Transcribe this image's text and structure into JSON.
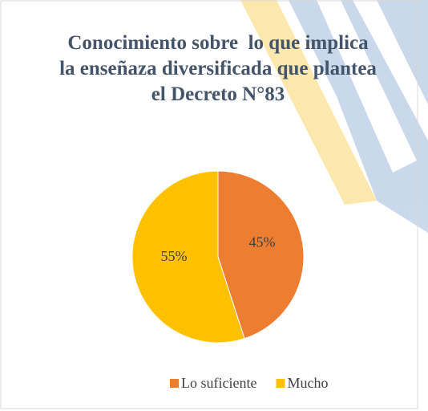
{
  "chart_data": {
    "type": "pie",
    "title": "Conocimiento sobre  lo que implica la enseñaza diversificada que plantea el Decreto N°83",
    "categories": [
      "Lo suficiente",
      "Mucho"
    ],
    "values": [
      45,
      55
    ],
    "value_labels": [
      "45%",
      "55%"
    ],
    "colors": [
      "#ED7D31",
      "#FFC000"
    ],
    "legend": "bottom"
  }
}
